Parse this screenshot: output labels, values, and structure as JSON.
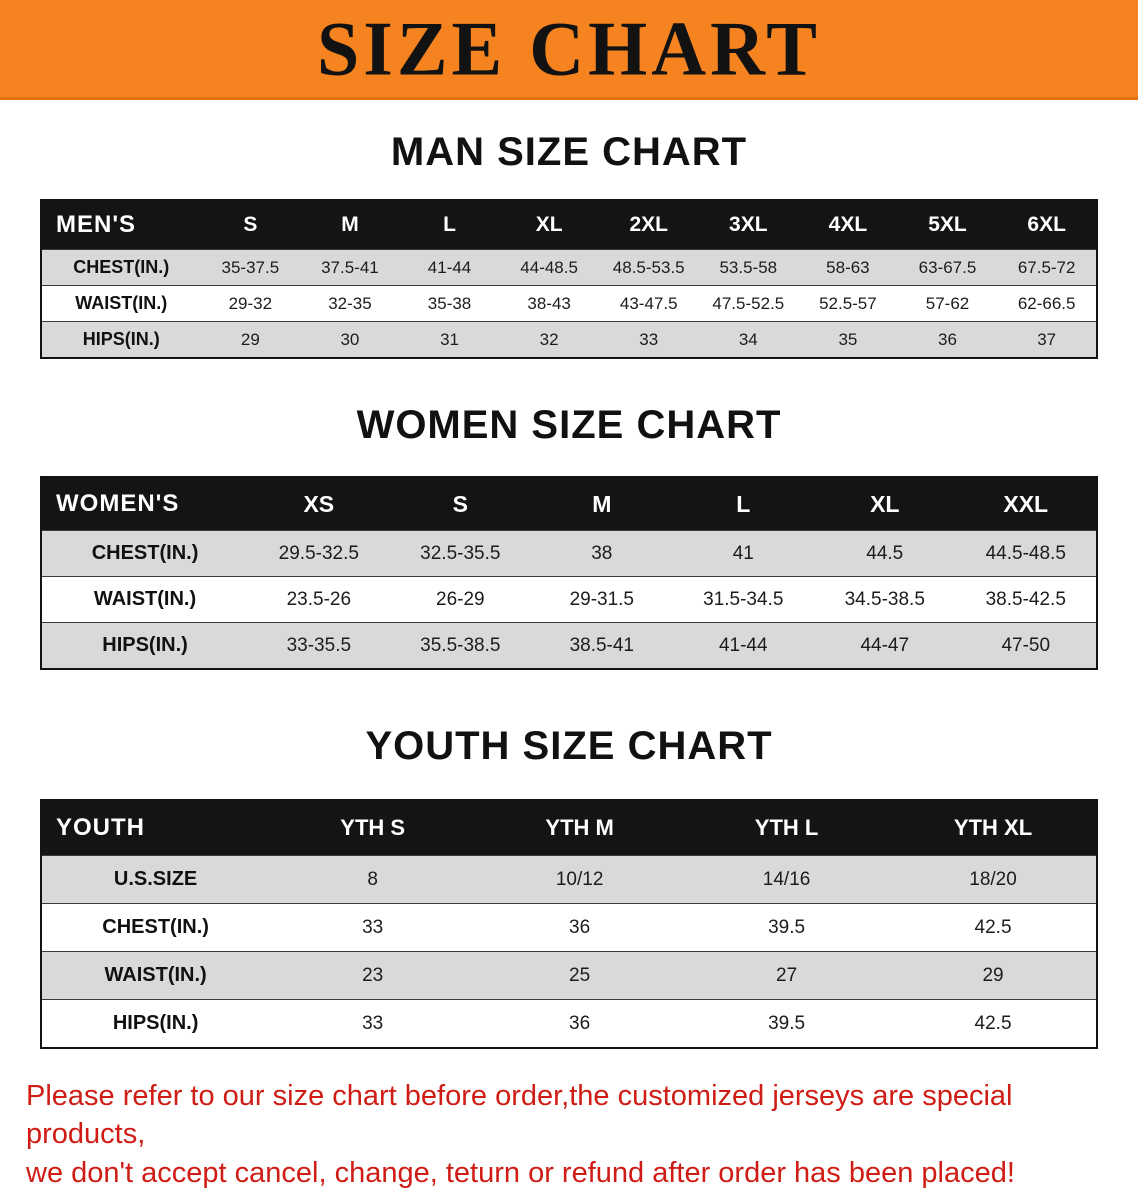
{
  "banner": {
    "title": "SIZE CHART"
  },
  "sections": [
    {
      "id": "men",
      "heading": "MAN SIZE CHART",
      "table": {
        "header": [
          "MEN'S",
          "S",
          "M",
          "L",
          "XL",
          "2XL",
          "3XL",
          "4XL",
          "5XL",
          "6XL"
        ],
        "rows": [
          [
            "CHEST(IN.)",
            "35-37.5",
            "37.5-41",
            "41-44",
            "44-48.5",
            "48.5-53.5",
            "53.5-58",
            "58-63",
            "63-67.5",
            "67.5-72"
          ],
          [
            "WAIST(IN.)",
            "29-32",
            "32-35",
            "35-38",
            "38-43",
            "43-47.5",
            "47.5-52.5",
            "52.5-57",
            "57-62",
            "62-66.5"
          ],
          [
            "HIPS(IN.)",
            "29",
            "30",
            "31",
            "32",
            "33",
            "34",
            "35",
            "36",
            "37"
          ]
        ]
      }
    },
    {
      "id": "women",
      "heading": "WOMEN SIZE CHART",
      "table": {
        "header": [
          "WOMEN'S",
          "XS",
          "S",
          "M",
          "L",
          "XL",
          "XXL"
        ],
        "rows": [
          [
            "CHEST(IN.)",
            "29.5-32.5",
            "32.5-35.5",
            "38",
            "41",
            "44.5",
            "44.5-48.5"
          ],
          [
            "WAIST(IN.)",
            "23.5-26",
            "26-29",
            "29-31.5",
            "31.5-34.5",
            "34.5-38.5",
            "38.5-42.5"
          ],
          [
            "HIPS(IN.)",
            "33-35.5",
            "35.5-38.5",
            "38.5-41",
            "41-44",
            "44-47",
            "47-50"
          ]
        ]
      }
    },
    {
      "id": "youth",
      "heading": "YOUTH SIZE CHART",
      "table": {
        "header": [
          "YOUTH",
          "YTH S",
          "YTH M",
          "YTH L",
          "YTH XL"
        ],
        "rows": [
          [
            "U.S.SIZE",
            "8",
            "10/12",
            "14/16",
            "18/20"
          ],
          [
            "CHEST(IN.)",
            "33",
            "36",
            "39.5",
            "42.5"
          ],
          [
            "WAIST(IN.)",
            "23",
            "25",
            "27",
            "29"
          ],
          [
            "HIPS(IN.)",
            "33",
            "36",
            "39.5",
            "42.5"
          ]
        ]
      }
    }
  ],
  "footer": {
    "line1": "Please refer to our size chart before order,the customized jerseys are special products,",
    "line2": "we don't accept cancel, change, teturn or refund after order has been placed!"
  },
  "colors": {
    "banner_orange": "#f5831f",
    "table_header_black": "#141414",
    "row_gray": "#d9d9d9",
    "row_white": "#ffffff",
    "footer_red": "#cf1d15",
    "title_black": "#121212"
  }
}
